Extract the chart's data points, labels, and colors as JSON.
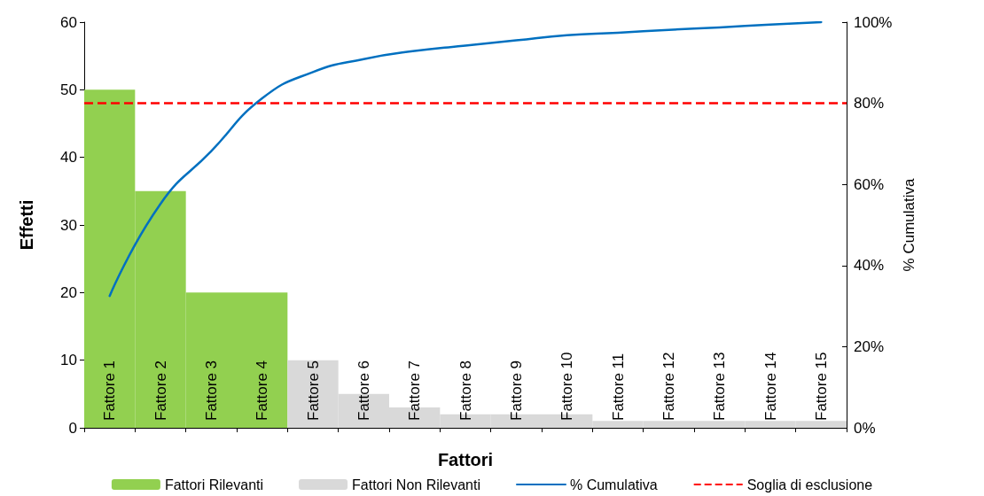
{
  "chart_data": {
    "type": "bar",
    "xlabel": "Fattori",
    "ylabel": "Effetti",
    "y2label": "% Cumulativa",
    "categories": [
      "Fattore 1",
      "Fattore 2",
      "Fattore 3",
      "Fattore 4",
      "Fattore 5",
      "Fattore 6",
      "Fattore 7",
      "Fattore 8",
      "Fattore 9",
      "Fattore 10",
      "Fattore 11",
      "Fattore 12",
      "Fattore 13",
      "Fattore 14",
      "Fattore 15"
    ],
    "series": [
      {
        "name": "Fattori Rilevanti",
        "color": "#92d050",
        "values": [
          50,
          35,
          20,
          20,
          null,
          null,
          null,
          null,
          null,
          null,
          null,
          null,
          null,
          null,
          null
        ]
      },
      {
        "name": "Fattori Non Rilevanti",
        "color": "#d9d9d9",
        "values": [
          null,
          null,
          null,
          null,
          10,
          5,
          3,
          2,
          2,
          2,
          1,
          1,
          1,
          1,
          1
        ]
      },
      {
        "name": "% Cumulativa",
        "type": "line",
        "axis": "y2",
        "color": "#0070c0",
        "values": [
          32.5,
          55.2,
          68.2,
          81.2,
          87.7,
          90.9,
          92.9,
          94.2,
          95.5,
          96.8,
          97.4,
          98.1,
          98.7,
          99.4,
          100
        ]
      }
    ],
    "ylim": [
      0,
      60
    ],
    "yticks": [
      0,
      10,
      20,
      30,
      40,
      50,
      60
    ],
    "y2lim": [
      0,
      100
    ],
    "y2ticks": [
      {
        "value": 0,
        "label": "0%"
      },
      {
        "value": 20,
        "label": "20%"
      },
      {
        "value": 40,
        "label": "40%"
      },
      {
        "value": 60,
        "label": "60%"
      },
      {
        "value": 80,
        "label": "80%"
      },
      {
        "value": 100,
        "label": "100%"
      }
    ],
    "ref_lines": [
      {
        "axis": "y2",
        "value": 80,
        "label": "Soglia di esclusione",
        "color": "#ff0000",
        "line_style": "dashed"
      }
    ],
    "grid": false,
    "legend": "bottom",
    "marker": "none"
  }
}
